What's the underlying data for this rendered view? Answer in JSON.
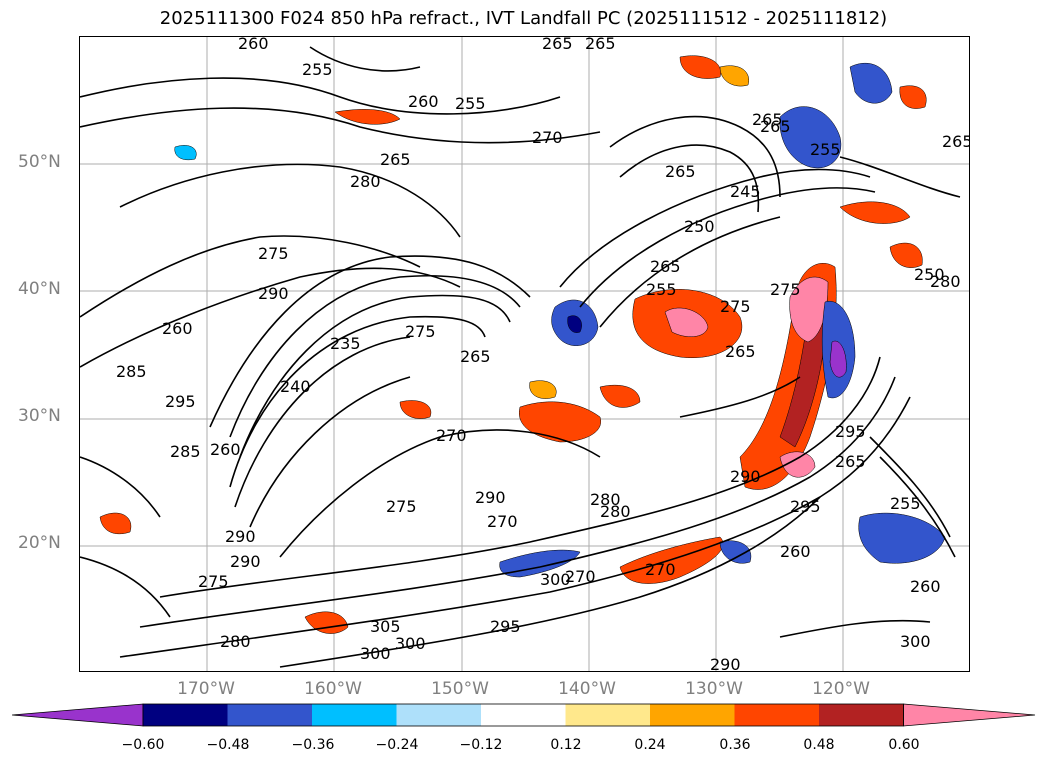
{
  "title": "2025111300 F024 850 hPa refract., IVT Landfall PC (2025111512 - 2025111812)",
  "lat_labels": [
    "50°N",
    "40°N",
    "30°N",
    "20°N"
  ],
  "lon_labels": [
    "170°W",
    "160°W",
    "150°W",
    "140°W",
    "130°W",
    "120°W"
  ],
  "contour_labels": [
    "260",
    "255",
    "265",
    "265",
    "260",
    "255",
    "270",
    "265",
    "280",
    "265",
    "265",
    "250",
    "245",
    "265",
    "255",
    "275",
    "290",
    "275",
    "260",
    "235",
    "285",
    "275",
    "295",
    "265",
    "240",
    "275",
    "270",
    "265",
    "250",
    "280",
    "285",
    "295",
    "290",
    "280",
    "270",
    "275",
    "290",
    "265",
    "255",
    "265",
    "295",
    "290",
    "275",
    "290",
    "300",
    "270",
    "280",
    "270",
    "260",
    "300",
    "305",
    "295",
    "260",
    "300",
    "300",
    "280",
    "290",
    "260",
    "265",
    "255"
  ],
  "colorbar": {
    "tick_labels": [
      "−0.60",
      "−0.48",
      "−0.36",
      "−0.24",
      "−0.12",
      "0.12",
      "0.24",
      "0.36",
      "0.48",
      "0.60"
    ],
    "colors": [
      "#9933cc",
      "#000080",
      "#3355cc",
      "#00bfff",
      "#aee0fa",
      "#ffffff",
      "#ffe88c",
      "#ffa500",
      "#ff4500",
      "#b22222",
      "#ff85a7"
    ]
  },
  "legend": {
    "min_arrow_color": "#9933cc",
    "max_arrow_color": "#ff85a7"
  }
}
